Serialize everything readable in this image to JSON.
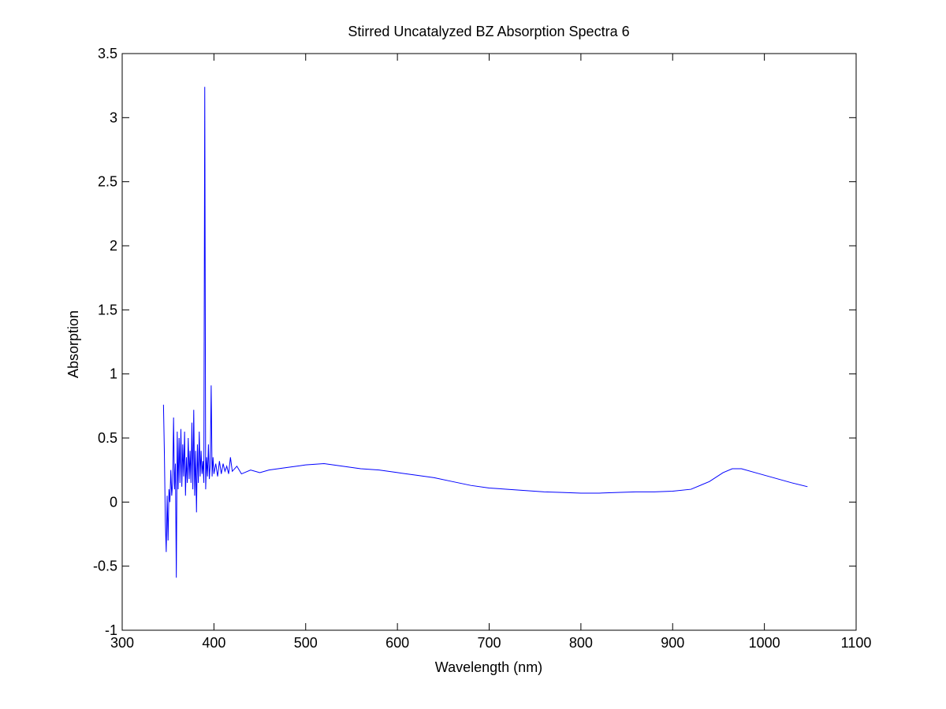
{
  "chart_data": {
    "type": "line",
    "title": "Stirred Uncatalyzed BZ Absorption Spectra 6",
    "x_label": "Wavelength (nm)",
    "y_label": "Absorption",
    "xlim": [
      300,
      1100
    ],
    "xticks": [
      300,
      400,
      500,
      600,
      700,
      800,
      900,
      1000,
      1100
    ],
    "ylim": [
      -1,
      3.5
    ],
    "yticks": [
      -1,
      -0.5,
      0,
      0.5,
      1,
      1.5,
      2,
      2.5,
      3,
      3.5
    ],
    "grid": false,
    "series": [
      {
        "name": "Absorption",
        "color": "#0000ff",
        "x": [
          345,
          346,
          347,
          348,
          349,
          350,
          351,
          352,
          353,
          354,
          355,
          356,
          357,
          358,
          359,
          360,
          361,
          362,
          363,
          364,
          365,
          366,
          367,
          368,
          369,
          370,
          371,
          372,
          373,
          374,
          375,
          376,
          377,
          378,
          379,
          380,
          381,
          382,
          383,
          384,
          385,
          386,
          387,
          388,
          389,
          390,
          391,
          392,
          393,
          394,
          395,
          396,
          397,
          398,
          399,
          400,
          402,
          404,
          406,
          408,
          410,
          412,
          414,
          416,
          418,
          420,
          425,
          430,
          440,
          450,
          460,
          480,
          500,
          520,
          540,
          560,
          580,
          600,
          620,
          640,
          660,
          680,
          700,
          720,
          740,
          760,
          780,
          800,
          820,
          840,
          860,
          880,
          900,
          920,
          940,
          955,
          965,
          975,
          990,
          1010,
          1030,
          1047
        ],
        "values": [
          0.76,
          0.38,
          -0.15,
          -0.39,
          0.05,
          -0.3,
          0.1,
          0.0,
          0.25,
          0.05,
          0.15,
          0.66,
          0.1,
          0.3,
          -0.59,
          0.55,
          0.1,
          0.5,
          0.15,
          0.57,
          0.12,
          0.45,
          0.2,
          0.55,
          0.05,
          0.35,
          0.15,
          0.5,
          0.18,
          0.4,
          0.15,
          0.62,
          0.1,
          0.72,
          0.05,
          0.4,
          -0.08,
          0.45,
          0.15,
          0.55,
          0.2,
          0.4,
          0.22,
          0.32,
          0.15,
          3.24,
          0.1,
          0.35,
          0.2,
          0.45,
          0.18,
          0.3,
          0.91,
          0.2,
          0.35,
          0.22,
          0.3,
          0.2,
          0.32,
          0.22,
          0.3,
          0.24,
          0.28,
          0.22,
          0.35,
          0.24,
          0.28,
          0.22,
          0.25,
          0.23,
          0.25,
          0.27,
          0.29,
          0.3,
          0.28,
          0.26,
          0.25,
          0.23,
          0.21,
          0.19,
          0.16,
          0.13,
          0.11,
          0.1,
          0.09,
          0.08,
          0.075,
          0.07,
          0.07,
          0.075,
          0.08,
          0.08,
          0.085,
          0.1,
          0.16,
          0.23,
          0.26,
          0.26,
          0.23,
          0.19,
          0.15,
          0.12
        ]
      }
    ]
  }
}
